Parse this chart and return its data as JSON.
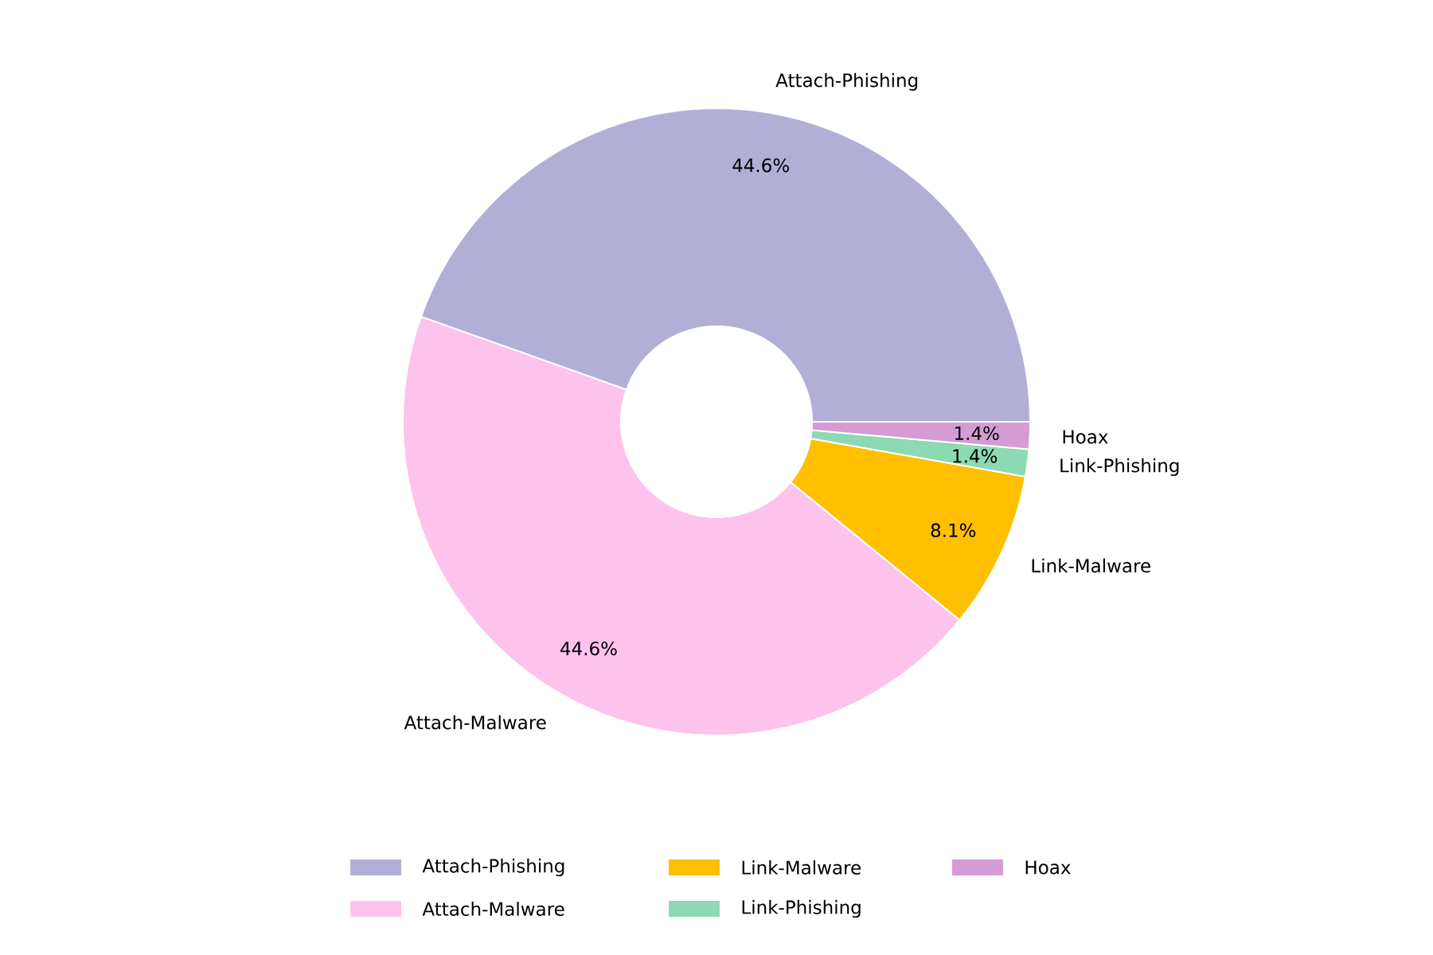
{
  "chart_data": {
    "type": "donut",
    "categories": [
      "Attach-Phishing",
      "Attach-Malware",
      "Link-Malware",
      "Link-Phishing",
      "Hoax"
    ],
    "values": [
      44.6,
      44.6,
      8.1,
      1.4,
      1.4
    ],
    "value_labels": [
      "44.6%",
      "44.6%",
      "8.1%",
      "1.4%",
      "1.4%"
    ],
    "colors": [
      "#b2afd7",
      "#fdc3ec",
      "#fec001",
      "#8dd9b4",
      "#d49bd4"
    ],
    "legend": "bottom"
  }
}
